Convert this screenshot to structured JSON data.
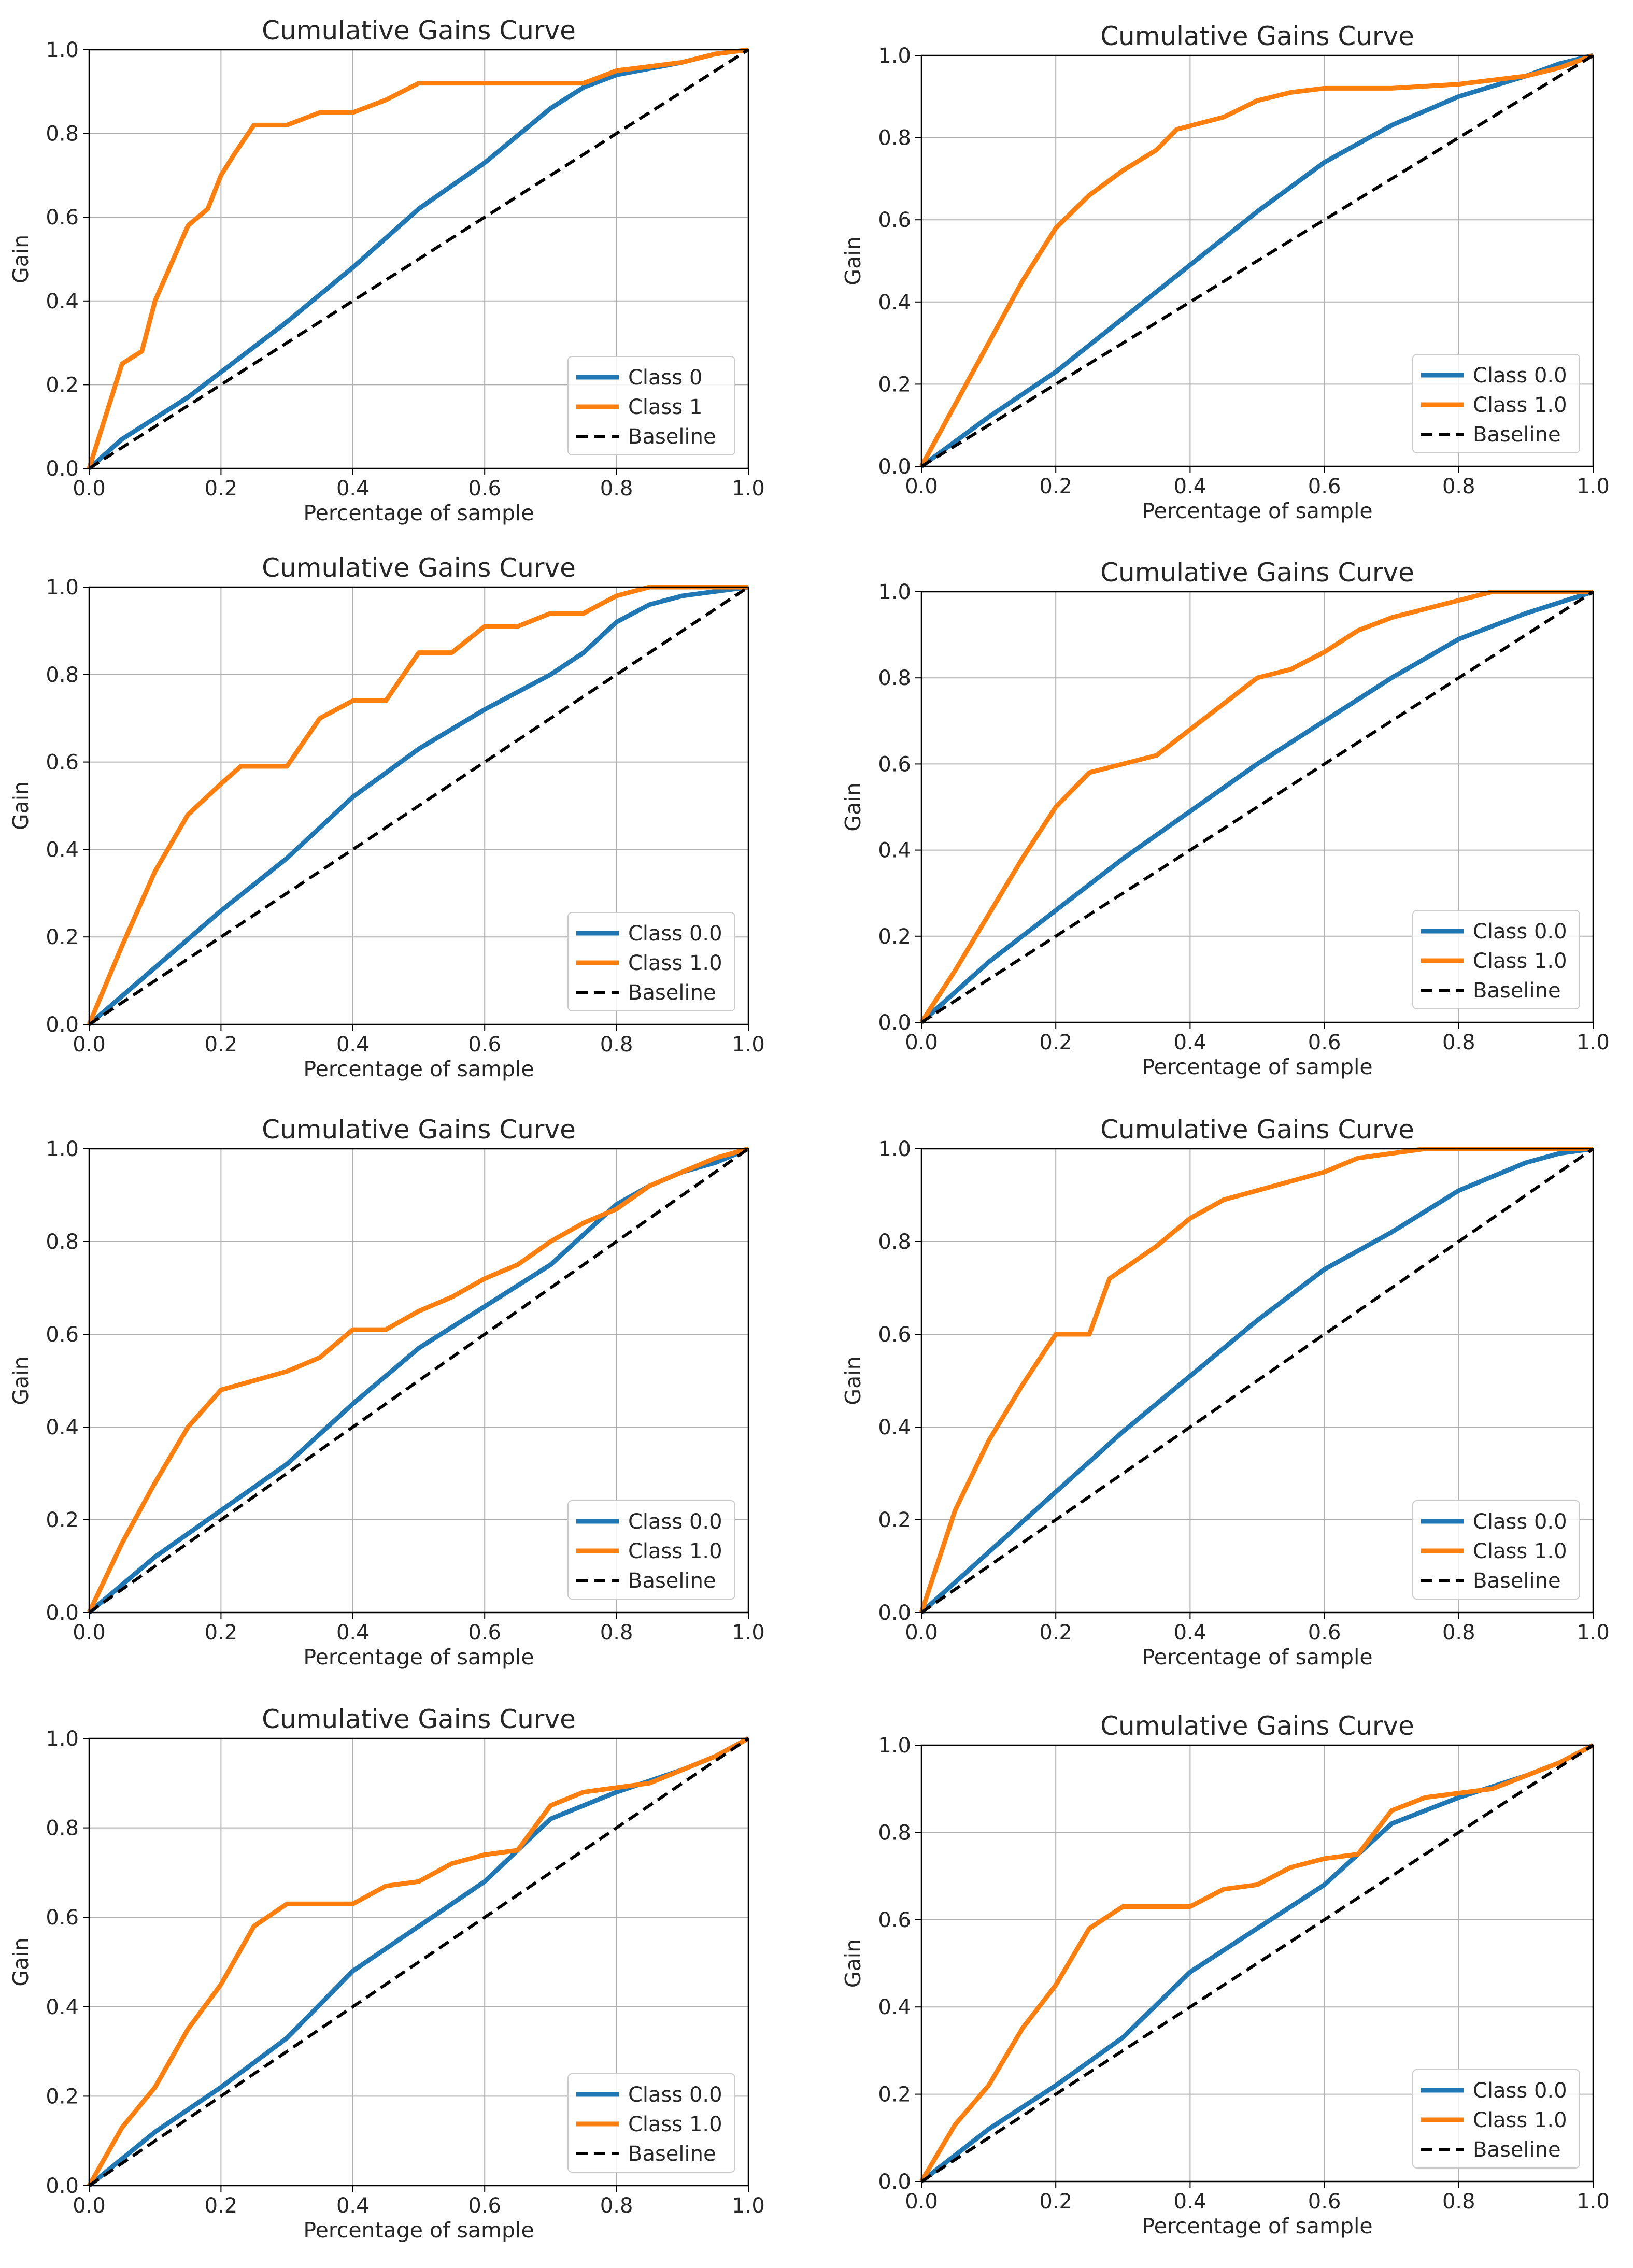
{
  "figure": {
    "background": "#ffffff",
    "grid_color": "#b0b0b0",
    "colors": {
      "class0": "#1f77b4",
      "class1": "#ff7f0e",
      "baseline": "#000000"
    }
  },
  "chart_data": [
    {
      "type": "line",
      "title": "Cumulative Gains Curve",
      "xlabel": "Percentage of sample",
      "ylabel": "Gain",
      "xlim": [
        0,
        1
      ],
      "ylim": [
        0,
        1
      ],
      "xticks": [
        "0.0",
        "0.2",
        "0.4",
        "0.6",
        "0.8",
        "1.0"
      ],
      "yticks": [
        "0.0",
        "0.2",
        "0.4",
        "0.6",
        "0.8",
        "1.0"
      ],
      "grid": true,
      "legend_position": "bottom-right",
      "series": [
        {
          "name": "Class 0",
          "style": "solid",
          "x": [
            0,
            0.05,
            0.1,
            0.15,
            0.2,
            0.3,
            0.4,
            0.5,
            0.6,
            0.7,
            0.75,
            0.8,
            0.9,
            0.95,
            1.0
          ],
          "y": [
            0,
            0.07,
            0.12,
            0.17,
            0.23,
            0.35,
            0.48,
            0.62,
            0.73,
            0.86,
            0.91,
            0.94,
            0.97,
            0.99,
            1.0
          ]
        },
        {
          "name": "Class 1",
          "style": "solid",
          "x": [
            0,
            0.05,
            0.08,
            0.1,
            0.15,
            0.18,
            0.2,
            0.22,
            0.25,
            0.3,
            0.35,
            0.4,
            0.45,
            0.5,
            0.6,
            0.7,
            0.75,
            0.8,
            0.9,
            0.95,
            1.0
          ],
          "y": [
            0,
            0.25,
            0.28,
            0.4,
            0.58,
            0.62,
            0.7,
            0.75,
            0.82,
            0.82,
            0.85,
            0.85,
            0.88,
            0.92,
            0.92,
            0.92,
            0.92,
            0.95,
            0.97,
            0.99,
            1.0
          ]
        },
        {
          "name": "Baseline",
          "style": "dashed",
          "x": [
            0,
            1
          ],
          "y": [
            0,
            1
          ]
        }
      ]
    },
    {
      "type": "line",
      "title": "Cumulative Gains Curve",
      "xlabel": "Percentage of sample",
      "ylabel": "Gain",
      "xlim": [
        0,
        1
      ],
      "ylim": [
        0,
        1
      ],
      "xticks": [
        "0.0",
        "0.2",
        "0.4",
        "0.6",
        "0.8",
        "1.0"
      ],
      "yticks": [
        "0.0",
        "0.2",
        "0.4",
        "0.6",
        "0.8",
        "1.0"
      ],
      "grid": true,
      "legend_position": "bottom-right",
      "series": [
        {
          "name": "Class 0.0",
          "style": "solid",
          "x": [
            0,
            0.05,
            0.1,
            0.2,
            0.3,
            0.4,
            0.5,
            0.6,
            0.7,
            0.8,
            0.9,
            0.95,
            1.0
          ],
          "y": [
            0,
            0.06,
            0.12,
            0.23,
            0.36,
            0.49,
            0.62,
            0.74,
            0.83,
            0.9,
            0.95,
            0.98,
            1.0
          ]
        },
        {
          "name": "Class 1.0",
          "style": "solid",
          "x": [
            0,
            0.05,
            0.1,
            0.15,
            0.2,
            0.25,
            0.3,
            0.35,
            0.38,
            0.45,
            0.5,
            0.55,
            0.6,
            0.7,
            0.8,
            0.9,
            0.95,
            1.0
          ],
          "y": [
            0,
            0.15,
            0.3,
            0.45,
            0.58,
            0.66,
            0.72,
            0.77,
            0.82,
            0.85,
            0.89,
            0.91,
            0.92,
            0.92,
            0.93,
            0.95,
            0.97,
            1.0
          ]
        },
        {
          "name": "Baseline",
          "style": "dashed",
          "x": [
            0,
            1
          ],
          "y": [
            0,
            1
          ]
        }
      ]
    },
    {
      "type": "line",
      "title": "Cumulative Gains Curve",
      "xlabel": "Percentage of sample",
      "ylabel": "Gain",
      "xlim": [
        0,
        1
      ],
      "ylim": [
        0,
        1
      ],
      "xticks": [
        "0.0",
        "0.2",
        "0.4",
        "0.6",
        "0.8",
        "1.0"
      ],
      "yticks": [
        "0.0",
        "0.2",
        "0.4",
        "0.6",
        "0.8",
        "1.0"
      ],
      "grid": true,
      "legend_position": "bottom-right",
      "series": [
        {
          "name": "Class 0.0",
          "style": "solid",
          "x": [
            0,
            0.1,
            0.2,
            0.3,
            0.4,
            0.5,
            0.6,
            0.7,
            0.75,
            0.8,
            0.85,
            0.9,
            0.95,
            1.0
          ],
          "y": [
            0,
            0.13,
            0.26,
            0.38,
            0.52,
            0.63,
            0.72,
            0.8,
            0.85,
            0.92,
            0.96,
            0.98,
            0.99,
            1.0
          ]
        },
        {
          "name": "Class 1.0",
          "style": "solid",
          "x": [
            0,
            0.05,
            0.1,
            0.15,
            0.2,
            0.23,
            0.3,
            0.35,
            0.4,
            0.45,
            0.5,
            0.55,
            0.6,
            0.65,
            0.7,
            0.75,
            0.8,
            0.85,
            0.9,
            1.0
          ],
          "y": [
            0,
            0.18,
            0.35,
            0.48,
            0.55,
            0.59,
            0.59,
            0.7,
            0.74,
            0.74,
            0.85,
            0.85,
            0.91,
            0.91,
            0.94,
            0.94,
            0.98,
            1.0,
            1.0,
            1.0
          ]
        },
        {
          "name": "Baseline",
          "style": "dashed",
          "x": [
            0,
            1
          ],
          "y": [
            0,
            1
          ]
        }
      ]
    },
    {
      "type": "line",
      "title": "Cumulative Gains Curve",
      "xlabel": "Percentage of sample",
      "ylabel": "Gain",
      "xlim": [
        0,
        1
      ],
      "ylim": [
        0,
        1
      ],
      "xticks": [
        "0.0",
        "0.2",
        "0.4",
        "0.6",
        "0.8",
        "1.0"
      ],
      "yticks": [
        "0.0",
        "0.2",
        "0.4",
        "0.6",
        "0.8",
        "1.0"
      ],
      "grid": true,
      "legend_position": "bottom-right",
      "series": [
        {
          "name": "Class 0.0",
          "style": "solid",
          "x": [
            0,
            0.1,
            0.2,
            0.3,
            0.4,
            0.5,
            0.6,
            0.7,
            0.8,
            0.9,
            1.0
          ],
          "y": [
            0,
            0.14,
            0.26,
            0.38,
            0.49,
            0.6,
            0.7,
            0.8,
            0.89,
            0.95,
            1.0
          ]
        },
        {
          "name": "Class 1.0",
          "style": "solid",
          "x": [
            0,
            0.05,
            0.1,
            0.15,
            0.2,
            0.25,
            0.3,
            0.35,
            0.4,
            0.45,
            0.5,
            0.55,
            0.6,
            0.65,
            0.7,
            0.75,
            0.8,
            0.85,
            0.9,
            1.0
          ],
          "y": [
            0,
            0.12,
            0.25,
            0.38,
            0.5,
            0.58,
            0.6,
            0.62,
            0.68,
            0.74,
            0.8,
            0.82,
            0.86,
            0.91,
            0.94,
            0.96,
            0.98,
            1.0,
            1.0,
            1.0
          ]
        },
        {
          "name": "Baseline",
          "style": "dashed",
          "x": [
            0,
            1
          ],
          "y": [
            0,
            1
          ]
        }
      ]
    },
    {
      "type": "line",
      "title": "Cumulative Gains Curve",
      "xlabel": "Percentage of sample",
      "ylabel": "Gain",
      "xlim": [
        0,
        1
      ],
      "ylim": [
        0,
        1
      ],
      "xticks": [
        "0.0",
        "0.2",
        "0.4",
        "0.6",
        "0.8",
        "1.0"
      ],
      "yticks": [
        "0.0",
        "0.2",
        "0.4",
        "0.6",
        "0.8",
        "1.0"
      ],
      "grid": true,
      "legend_position": "bottom-right",
      "series": [
        {
          "name": "Class 0.0",
          "style": "solid",
          "x": [
            0,
            0.1,
            0.2,
            0.3,
            0.4,
            0.5,
            0.6,
            0.7,
            0.8,
            0.85,
            0.9,
            0.95,
            1.0
          ],
          "y": [
            0,
            0.12,
            0.22,
            0.32,
            0.45,
            0.57,
            0.66,
            0.75,
            0.88,
            0.92,
            0.95,
            0.97,
            1.0
          ]
        },
        {
          "name": "Class 1.0",
          "style": "solid",
          "x": [
            0,
            0.05,
            0.1,
            0.15,
            0.2,
            0.25,
            0.3,
            0.35,
            0.4,
            0.45,
            0.5,
            0.55,
            0.6,
            0.65,
            0.7,
            0.75,
            0.8,
            0.85,
            0.9,
            0.95,
            1.0
          ],
          "y": [
            0,
            0.15,
            0.28,
            0.4,
            0.48,
            0.5,
            0.52,
            0.55,
            0.61,
            0.61,
            0.65,
            0.68,
            0.72,
            0.75,
            0.8,
            0.84,
            0.87,
            0.92,
            0.95,
            0.98,
            1.0
          ]
        },
        {
          "name": "Baseline",
          "style": "dashed",
          "x": [
            0,
            1
          ],
          "y": [
            0,
            1
          ]
        }
      ]
    },
    {
      "type": "line",
      "title": "Cumulative Gains Curve",
      "xlabel": "Percentage of sample",
      "ylabel": "Gain",
      "xlim": [
        0,
        1
      ],
      "ylim": [
        0,
        1
      ],
      "xticks": [
        "0.0",
        "0.2",
        "0.4",
        "0.6",
        "0.8",
        "1.0"
      ],
      "yticks": [
        "0.0",
        "0.2",
        "0.4",
        "0.6",
        "0.8",
        "1.0"
      ],
      "grid": true,
      "legend_position": "bottom-right",
      "series": [
        {
          "name": "Class 0.0",
          "style": "solid",
          "x": [
            0,
            0.1,
            0.2,
            0.3,
            0.4,
            0.5,
            0.6,
            0.7,
            0.8,
            0.85,
            0.9,
            0.95,
            1.0
          ],
          "y": [
            0,
            0.13,
            0.26,
            0.39,
            0.51,
            0.63,
            0.74,
            0.82,
            0.91,
            0.94,
            0.97,
            0.99,
            1.0
          ]
        },
        {
          "name": "Class 1.0",
          "style": "solid",
          "x": [
            0,
            0.05,
            0.1,
            0.15,
            0.2,
            0.25,
            0.28,
            0.32,
            0.35,
            0.4,
            0.45,
            0.5,
            0.55,
            0.6,
            0.65,
            0.7,
            0.75,
            0.8,
            0.9,
            1.0
          ],
          "y": [
            0,
            0.22,
            0.37,
            0.49,
            0.6,
            0.6,
            0.72,
            0.76,
            0.79,
            0.85,
            0.89,
            0.91,
            0.93,
            0.95,
            0.98,
            0.99,
            1.0,
            1.0,
            1.0,
            1.0
          ]
        },
        {
          "name": "Baseline",
          "style": "dashed",
          "x": [
            0,
            1
          ],
          "y": [
            0,
            1
          ]
        }
      ]
    },
    {
      "type": "line",
      "title": "Cumulative Gains Curve",
      "xlabel": "Percentage of sample",
      "ylabel": "Gain",
      "xlim": [
        0,
        1
      ],
      "ylim": [
        0,
        1
      ],
      "xticks": [
        "0.0",
        "0.2",
        "0.4",
        "0.6",
        "0.8",
        "1.0"
      ],
      "yticks": [
        "0.0",
        "0.2",
        "0.4",
        "0.6",
        "0.8",
        "1.0"
      ],
      "grid": true,
      "legend_position": "bottom-right",
      "series": [
        {
          "name": "Class 0.0",
          "style": "solid",
          "x": [
            0,
            0.1,
            0.2,
            0.3,
            0.4,
            0.5,
            0.6,
            0.7,
            0.8,
            0.9,
            0.95,
            1.0
          ],
          "y": [
            0,
            0.12,
            0.22,
            0.33,
            0.48,
            0.58,
            0.68,
            0.82,
            0.88,
            0.93,
            0.96,
            1.0
          ]
        },
        {
          "name": "Class 1.0",
          "style": "solid",
          "x": [
            0,
            0.05,
            0.1,
            0.15,
            0.2,
            0.25,
            0.3,
            0.35,
            0.4,
            0.45,
            0.5,
            0.55,
            0.6,
            0.65,
            0.7,
            0.75,
            0.8,
            0.85,
            0.9,
            0.95,
            1.0
          ],
          "y": [
            0,
            0.13,
            0.22,
            0.35,
            0.45,
            0.58,
            0.63,
            0.63,
            0.63,
            0.67,
            0.68,
            0.72,
            0.74,
            0.75,
            0.85,
            0.88,
            0.89,
            0.9,
            0.93,
            0.96,
            1.0
          ]
        },
        {
          "name": "Baseline",
          "style": "dashed",
          "x": [
            0,
            1
          ],
          "y": [
            0,
            1
          ]
        }
      ]
    },
    {
      "type": "line",
      "title": "Cumulative Gains Curve",
      "xlabel": "Percentage of sample",
      "ylabel": "Gain",
      "xlim": [
        0,
        1
      ],
      "ylim": [
        0,
        1
      ],
      "xticks": [
        "0.0",
        "0.2",
        "0.4",
        "0.6",
        "0.8",
        "1.0"
      ],
      "yticks": [
        "0.0",
        "0.2",
        "0.4",
        "0.6",
        "0.8",
        "1.0"
      ],
      "grid": true,
      "legend_position": "bottom-right",
      "series": [
        {
          "name": "Class 0.0",
          "style": "solid",
          "x": [
            0,
            0.1,
            0.2,
            0.3,
            0.4,
            0.5,
            0.6,
            0.7,
            0.8,
            0.9,
            0.95,
            1.0
          ],
          "y": [
            0,
            0.12,
            0.22,
            0.33,
            0.48,
            0.58,
            0.68,
            0.82,
            0.88,
            0.93,
            0.96,
            1.0
          ]
        },
        {
          "name": "Class 1.0",
          "style": "solid",
          "x": [
            0,
            0.05,
            0.1,
            0.15,
            0.2,
            0.25,
            0.3,
            0.35,
            0.4,
            0.45,
            0.5,
            0.55,
            0.6,
            0.65,
            0.7,
            0.75,
            0.8,
            0.85,
            0.9,
            0.95,
            1.0
          ],
          "y": [
            0,
            0.13,
            0.22,
            0.35,
            0.45,
            0.58,
            0.63,
            0.63,
            0.63,
            0.67,
            0.68,
            0.72,
            0.74,
            0.75,
            0.85,
            0.88,
            0.89,
            0.9,
            0.93,
            0.96,
            1.0
          ]
        },
        {
          "name": "Baseline",
          "style": "dashed",
          "x": [
            0,
            1
          ],
          "y": [
            0,
            1
          ]
        }
      ]
    }
  ]
}
